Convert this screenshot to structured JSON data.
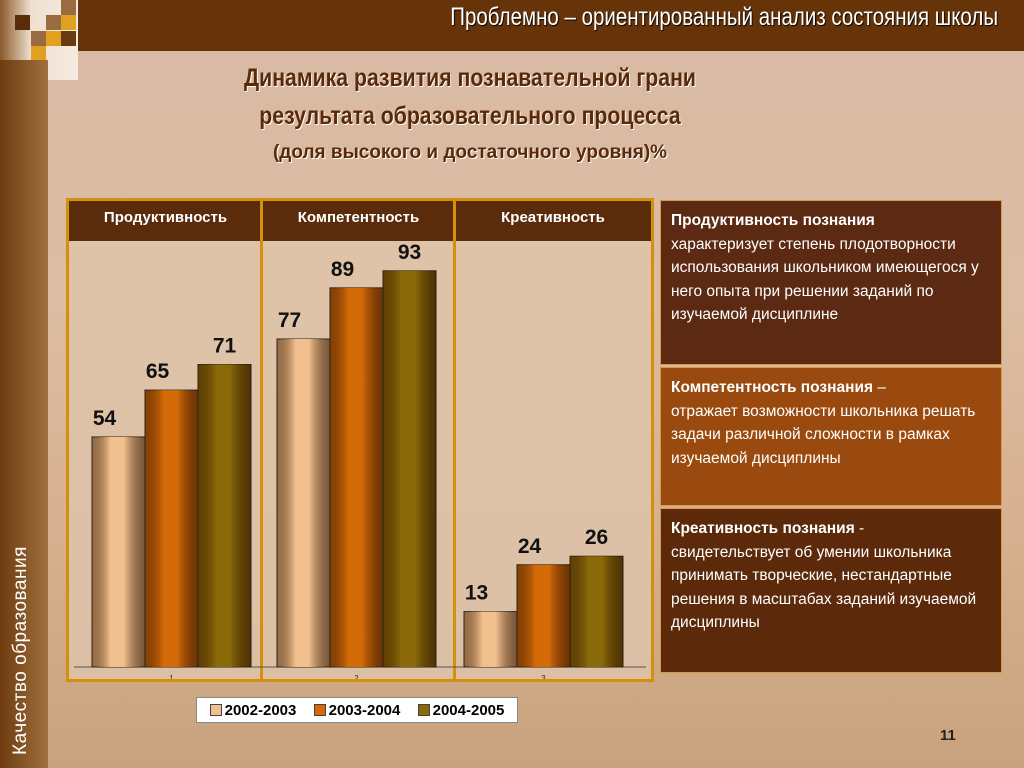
{
  "header": {
    "title": "Проблемно – ориентированный анализ состояния школы"
  },
  "sidebar": {
    "label": "Качество образования"
  },
  "heading": {
    "line1": "Динамика развития познавательной грани",
    "line2": "результата образовательного процесса",
    "line3": "(доля высокого и достаточного уровня)%"
  },
  "chart_data": {
    "type": "bar",
    "group_headers": [
      "Продуктивность",
      "Компетентность",
      "Креативность"
    ],
    "categories": [
      "1",
      "2",
      "3"
    ],
    "series": [
      {
        "name": "2002-2003",
        "values": [
          54,
          77,
          13
        ],
        "color": "#f2c08e"
      },
      {
        "name": "2003-2004",
        "values": [
          65,
          89,
          24
        ],
        "color": "#d46a08"
      },
      {
        "name": "2004-2005",
        "values": [
          71,
          93,
          26
        ],
        "color": "#8a6a08"
      }
    ],
    "ylim": [
      0,
      100
    ],
    "grid": false,
    "legend": "bottom"
  },
  "definitions": [
    {
      "term": "Продуктивность познания",
      "text": "характеризует степень плодотворности использования школьником имеющегося у него опыта при решении заданий по изучаемой дисциплине",
      "color": "#5c2a12"
    },
    {
      "term": "Компетентность познания",
      "sep": " –",
      "text": "отражает возможности школьника решать задачи различной сложности в рамках изучаемой дисциплины",
      "color": "#9a4a0e"
    },
    {
      "term": "Креативность познания",
      "sep": " -",
      "text": "свидетельствует об умении школьника принимать творческие, нестандартные решения в масштабах заданий изучаемой дисциплины",
      "color": "#5c2a0a"
    }
  ],
  "page_number": "11"
}
